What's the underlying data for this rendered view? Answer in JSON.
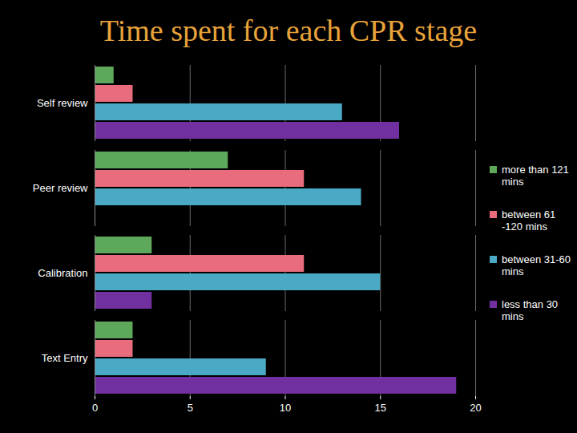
{
  "chart_data": {
    "type": "bar",
    "orientation": "horizontal",
    "title": "Time spent for each CPR stage",
    "categories": [
      "Self review",
      "Peer review",
      "Calibration",
      "Text Entry"
    ],
    "series": [
      {
        "name": "more than 121 mins",
        "color": "#5ea85b",
        "values": [
          1,
          7,
          3,
          2
        ]
      },
      {
        "name": "between 61 -120 mins",
        "color": "#e86c7c",
        "values": [
          2,
          11,
          11,
          2
        ]
      },
      {
        "name": "between 31-60 mins",
        "color": "#4aaac6",
        "values": [
          13,
          14,
          15,
          9
        ]
      },
      {
        "name": "less than 30 mins",
        "color": "#7030a0",
        "values": [
          16,
          0,
          3,
          19
        ]
      }
    ],
    "xlim": [
      0,
      20
    ],
    "xticks": [
      0,
      5,
      10,
      15,
      20
    ],
    "grid": true,
    "legend": "right"
  }
}
